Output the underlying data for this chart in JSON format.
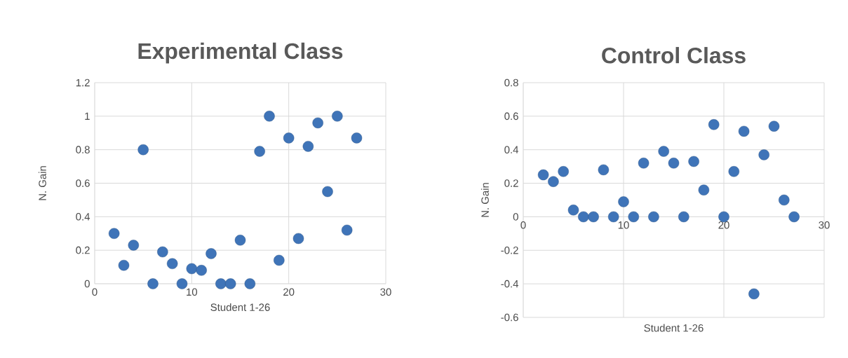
{
  "chart_data": [
    {
      "type": "scatter",
      "title": "Experimental Class",
      "xlabel": "Student 1-26",
      "ylabel": "N. Gain",
      "color": "#3f74b8",
      "marker": "circle",
      "grid": true,
      "x": [
        2,
        3,
        4,
        5,
        6,
        7,
        8,
        9,
        10,
        11,
        12,
        13,
        14,
        15,
        16,
        17,
        18,
        19,
        20,
        21,
        22,
        23,
        24,
        25,
        26,
        27
      ],
      "values": [
        0.3,
        0.11,
        0.23,
        0.8,
        0,
        0.19,
        0.12,
        0,
        0.09,
        0.08,
        0.18,
        0,
        0,
        0.26,
        0,
        0.79,
        1.0,
        0.14,
        0.87,
        0.27,
        0.82,
        0.96,
        0.55,
        1.0,
        0.32,
        0.87
      ],
      "xlim": [
        0,
        30
      ],
      "ylim": [
        0,
        1.2
      ],
      "xticks": [
        0,
        10,
        20,
        30
      ],
      "yticks": [
        0,
        0.2,
        0.4,
        0.6,
        0.8,
        1,
        1.2
      ]
    },
    {
      "type": "scatter",
      "title": "Control Class",
      "xlabel": "Student 1-26",
      "ylabel": "N. Gain",
      "color": "#3f74b8",
      "marker": "circle",
      "grid": true,
      "x": [
        2,
        3,
        4,
        5,
        6,
        7,
        8,
        9,
        10,
        11,
        12,
        13,
        14,
        15,
        16,
        17,
        18,
        19,
        20,
        21,
        22,
        23,
        24,
        25,
        26,
        27
      ],
      "values": [
        0.25,
        0.21,
        0.27,
        0.04,
        0,
        0,
        0.28,
        0,
        0.09,
        0,
        0.32,
        0,
        0.39,
        0.32,
        0,
        0.33,
        0.16,
        0.55,
        0,
        0.27,
        0.51,
        -0.46,
        0.37,
        0.54,
        0.1,
        0
      ],
      "xlim": [
        0,
        30
      ],
      "ylim": [
        -0.6,
        0.8
      ],
      "xticks": [
        0,
        10,
        20,
        30
      ],
      "yticks": [
        -0.6,
        -0.4,
        -0.2,
        0,
        0.2,
        0.4,
        0.6,
        0.8
      ]
    }
  ]
}
